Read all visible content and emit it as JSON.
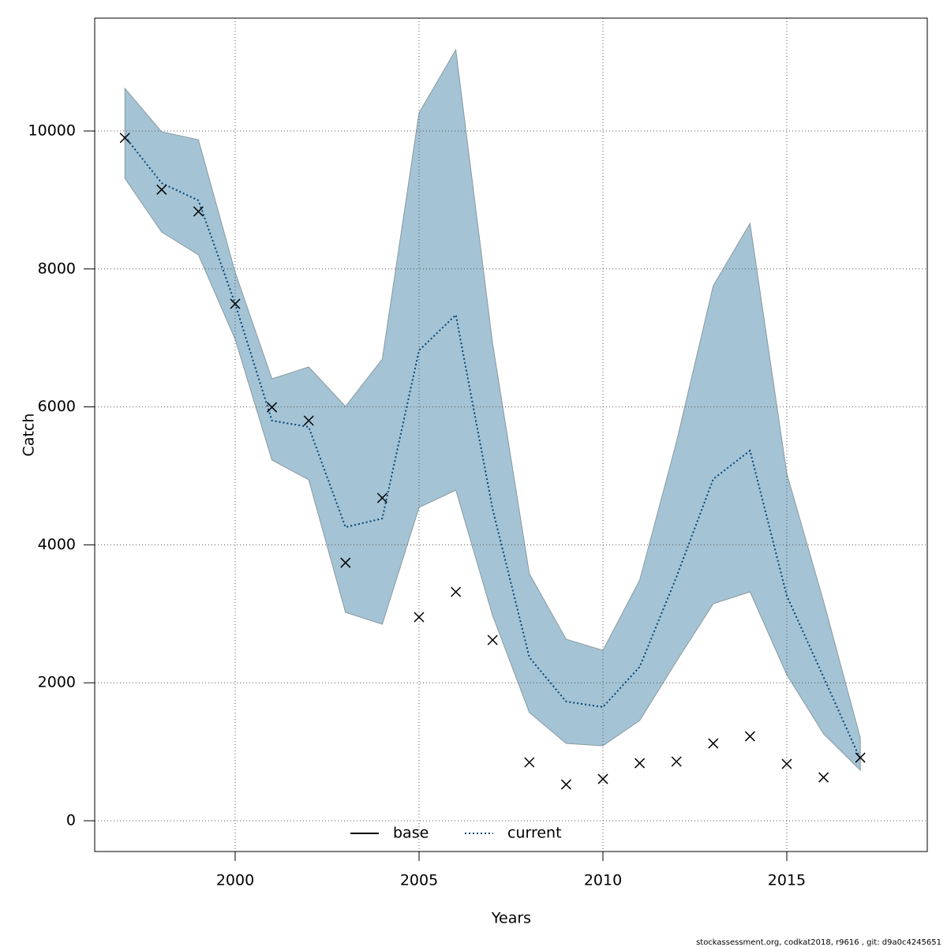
{
  "chart_data": {
    "type": "line",
    "x_label": "Years",
    "y_label": "Catch",
    "footer": "stockassessment.org, codkat2018, r9616 , git: d9a0c4245651",
    "x": [
      1997,
      1998,
      1999,
      2000,
      2001,
      2002,
      2003,
      2004,
      2005,
      2006,
      2007,
      2008,
      2009,
      2010,
      2011,
      2012,
      2013,
      2014,
      2015,
      2016,
      2017
    ],
    "series": [
      {
        "name": "current",
        "color": "#00447a",
        "dash": "dotted",
        "values": [
          9920,
          9245,
          8993,
          7494,
          5801,
          5709,
          4256,
          4382,
          6819,
          7334,
          4519,
          2368,
          1728,
          1648,
          2231,
          3535,
          4954,
          5366,
          3261,
          2082,
          892
        ]
      }
    ],
    "legend_entries": [
      {
        "name": "base",
        "color": "#000000",
        "dash": "solid"
      },
      {
        "name": "current",
        "color": "#00447a",
        "dash": "dotted"
      }
    ],
    "band": {
      "color": "#a4c3d4",
      "stroke": "#8a9aa2",
      "upper": [
        10618,
        9989,
        9874,
        7952,
        6407,
        6579,
        6007,
        6693,
        10263,
        11178,
        6922,
        3581,
        2632,
        2471,
        3490,
        5492,
        7757,
        8661,
        5034,
        3181,
        1201
      ],
      "lower": [
        9314,
        8535,
        8204,
        6979,
        5229,
        4943,
        3021,
        2849,
        4542,
        4794,
        2975,
        1568,
        1121,
        1087,
        1453,
        2311,
        3146,
        3318,
        2117,
        1259,
        732
      ]
    },
    "observations": {
      "color": "#000000",
      "values": [
        9900,
        9150,
        8833,
        7494,
        5995,
        5801,
        3741,
        4680,
        2952,
        3318,
        2620,
        847,
        526,
        606,
        835,
        858,
        1121,
        1224,
        824,
        629,
        915
      ]
    },
    "xlim": [
      1996.18,
      2018.82
    ],
    "ylim": [
      -446,
      11636
    ],
    "xticks": [
      2000,
      2005,
      2010,
      2015
    ],
    "yticks": [
      0,
      2000,
      4000,
      6000,
      8000,
      10000
    ],
    "grid": true,
    "legend_position": "bottom"
  }
}
